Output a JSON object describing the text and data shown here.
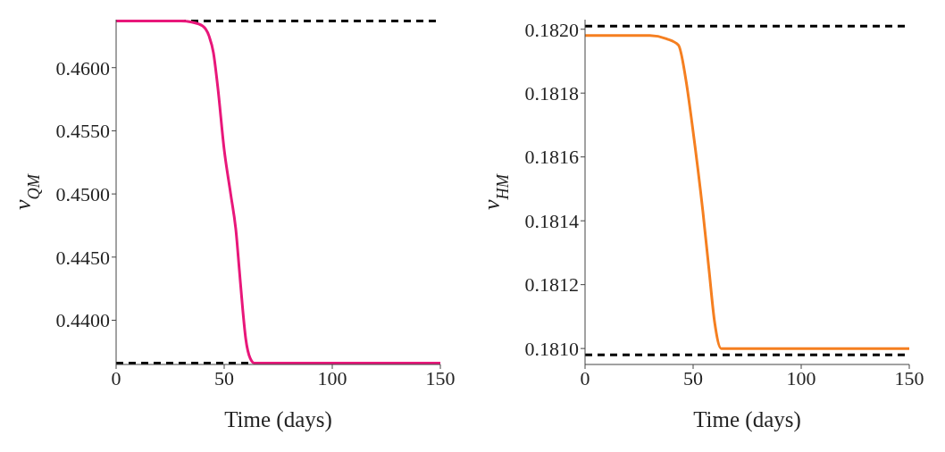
{
  "chart_data": [
    {
      "type": "line",
      "xlabel": "Time (days)",
      "ylabel": "ν$_{QM}$",
      "x": [
        0,
        30,
        35,
        40,
        43,
        45,
        47,
        50,
        53,
        55.5,
        57,
        58.5,
        60,
        62,
        64,
        150
      ],
      "series": [
        {
          "color": "#e8177a",
          "values": [
            0.4637,
            0.4637,
            0.4636,
            0.4633,
            0.4625,
            0.4612,
            0.4585,
            0.4535,
            0.45,
            0.447,
            0.444,
            0.441,
            0.4385,
            0.437,
            0.4366,
            0.4366
          ]
        }
      ],
      "xlim": [
        0,
        150
      ],
      "xticks": [
        0,
        50,
        100,
        150
      ],
      "ylim": [
        0.4365,
        0.4638
      ],
      "yticks": [
        {
          "value": 0.44,
          "label": "0.4400"
        },
        {
          "value": 0.445,
          "label": "0.4450"
        },
        {
          "value": 0.45,
          "label": "0.4500"
        },
        {
          "value": 0.455,
          "label": "0.4550"
        },
        {
          "value": 0.46,
          "label": "0.4600"
        }
      ],
      "ref_lines": [
        {
          "axis": "y",
          "value": 0.4637,
          "color": "#000000",
          "line_style": "dashed"
        },
        {
          "axis": "y",
          "value": 0.4366,
          "color": "#000000",
          "line_style": "dashed"
        }
      ],
      "grid": false,
      "legend": false
    },
    {
      "type": "line",
      "xlabel": "Time (days)",
      "ylabel": "ν$_{HM}$",
      "x": [
        0,
        30,
        37.6,
        43.2,
        46.7,
        49.6,
        54.5,
        57.3,
        60,
        63,
        150
      ],
      "series": [
        {
          "color": "#f57f20",
          "values": [
            0.18198,
            0.18198,
            0.18197,
            0.18195,
            0.18184,
            0.1817,
            0.18143,
            0.18125,
            0.18108,
            0.181,
            0.181
          ]
        }
      ],
      "xlim": [
        0,
        150
      ],
      "xticks": [
        0,
        50,
        100,
        150
      ],
      "ylim": [
        0.18095,
        0.18203
      ],
      "yticks": [
        {
          "value": 0.181,
          "label": "0.1810"
        },
        {
          "value": 0.1812,
          "label": "0.1812"
        },
        {
          "value": 0.1814,
          "label": "0.1814"
        },
        {
          "value": 0.1816,
          "label": "0.1816"
        },
        {
          "value": 0.1818,
          "label": "0.1818"
        },
        {
          "value": 0.182,
          "label": "0.1820"
        }
      ],
      "ref_lines": [
        {
          "axis": "y",
          "value": 0.18201,
          "color": "#000000",
          "line_style": "dashed"
        },
        {
          "axis": "y",
          "value": 0.18098,
          "color": "#000000",
          "line_style": "dashed"
        }
      ],
      "grid": false,
      "legend": false
    }
  ]
}
